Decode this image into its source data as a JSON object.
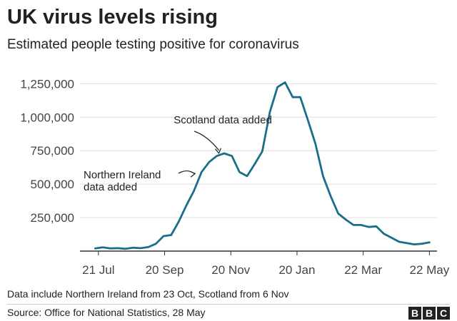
{
  "header": {
    "title": "UK virus levels rising",
    "subtitle": "Estimated people testing positive for coronavirus"
  },
  "footer": {
    "note": "Data include Northern Ireland from 23 Oct, Scotland from 6 Nov",
    "source": "Source: Office for National Statistics, 28 May",
    "logo_letters": [
      "B",
      "B",
      "C"
    ]
  },
  "colors": {
    "line": "#1a6e8a",
    "grid": "#dddddd",
    "axis": "#333333"
  },
  "chart_data": {
    "type": "line",
    "title": "UK virus levels rising",
    "subtitle": "Estimated people testing positive for coronavirus",
    "xlabel": "",
    "ylabel": "",
    "ylim": [
      0,
      1300000
    ],
    "yticks": [
      250000,
      500000,
      750000,
      1000000,
      1250000
    ],
    "ytick_labels": [
      "250,000",
      "500,000",
      "750,000",
      "1,000,000",
      "1,250,000"
    ],
    "xlim": [
      "2020-07-04",
      "2021-05-29"
    ],
    "xticks": [
      "2020-07-21",
      "2020-09-20",
      "2020-11-20",
      "2021-01-20",
      "2021-03-22",
      "2021-05-22"
    ],
    "xtick_labels": [
      "21 Jul",
      "20 Sep",
      "20 Nov",
      "20 Jan",
      "22 Mar",
      "22 May"
    ],
    "grid": true,
    "series": [
      {
        "x": [
          "2020-07-18",
          "2020-07-25",
          "2020-08-01",
          "2020-08-08",
          "2020-08-15",
          "2020-08-22",
          "2020-08-29",
          "2020-09-05",
          "2020-09-12",
          "2020-09-19",
          "2020-09-26",
          "2020-10-03",
          "2020-10-10",
          "2020-10-17",
          "2020-10-24",
          "2020-10-31",
          "2020-11-07",
          "2020-11-14",
          "2020-11-21",
          "2020-11-28",
          "2020-12-05",
          "2020-12-12",
          "2020-12-19",
          "2020-12-26",
          "2021-01-02",
          "2021-01-09",
          "2021-01-16",
          "2021-01-23",
          "2021-01-30",
          "2021-02-06",
          "2021-02-13",
          "2021-02-20",
          "2021-02-27",
          "2021-03-06",
          "2021-03-13",
          "2021-03-20",
          "2021-03-27",
          "2021-04-03",
          "2021-04-10",
          "2021-04-17",
          "2021-04-24",
          "2021-05-01",
          "2021-05-08",
          "2021-05-15",
          "2021-05-22"
        ],
        "values": [
          20000,
          28000,
          20000,
          22000,
          17000,
          25000,
          22000,
          30000,
          55000,
          112000,
          120000,
          220000,
          340000,
          450000,
          590000,
          665000,
          710000,
          730000,
          710000,
          590000,
          560000,
          650000,
          745000,
          1040000,
          1225000,
          1260000,
          1150000,
          1150000,
          980000,
          800000,
          560000,
          410000,
          280000,
          235000,
          195000,
          195000,
          180000,
          185000,
          130000,
          100000,
          70000,
          60000,
          50000,
          55000,
          65000
        ]
      }
    ],
    "annotations": [
      {
        "lines": [
          "Scotland data added"
        ],
        "x": "2020-11-07"
      },
      {
        "lines": [
          "Northern Ireland",
          "data added"
        ],
        "x": "2020-10-24"
      }
    ]
  }
}
